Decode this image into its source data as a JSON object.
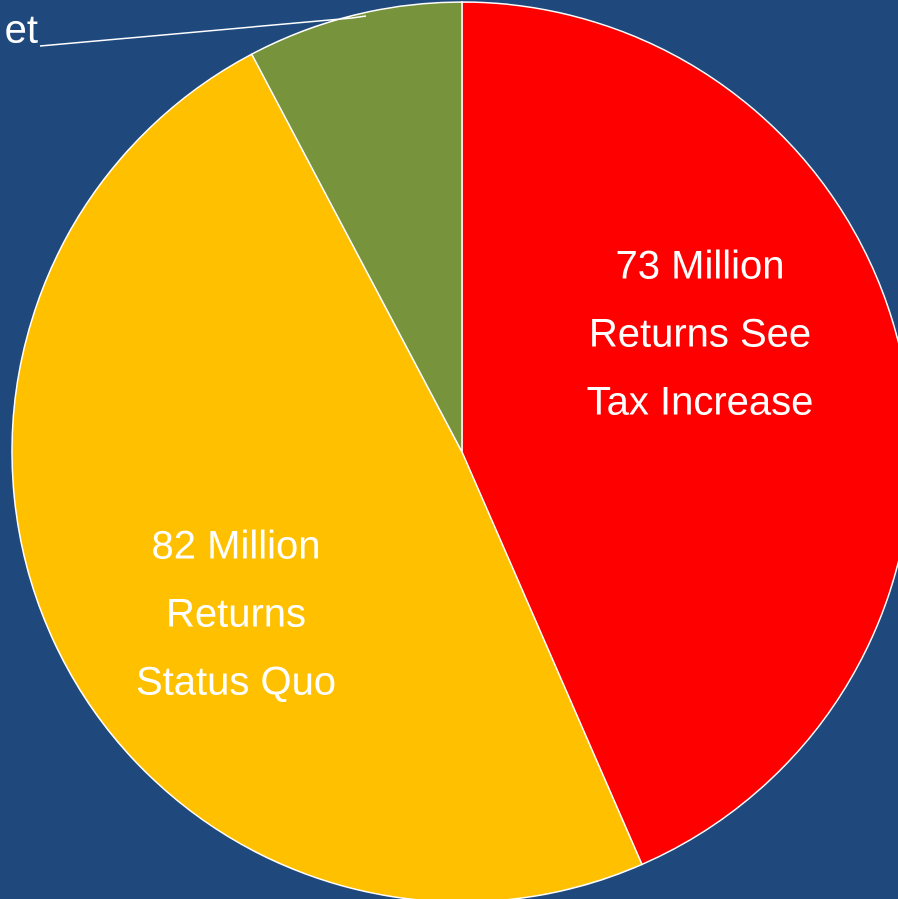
{
  "chart_data": {
    "type": "pie",
    "labels": [
      [
        "73 Million",
        "Returns See",
        "Tax Increase"
      ],
      [
        "82 Million",
        "Returns",
        "Status Quo"
      ],
      [
        "et"
      ]
    ],
    "values": [
      73,
      82,
      13
    ],
    "colors": [
      "#ff0000",
      "#ffc000",
      "#77933c"
    ]
  }
}
